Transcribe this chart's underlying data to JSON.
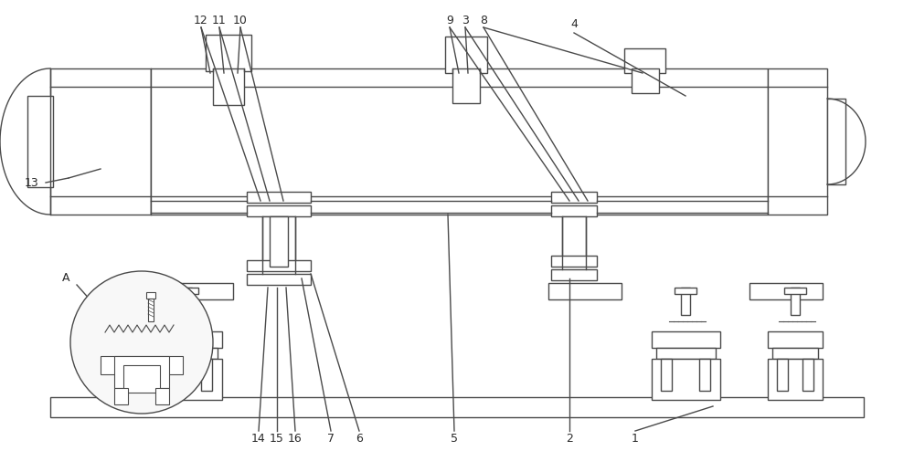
{
  "bg_color": "#ffffff",
  "line_color": "#4a4a4a",
  "lw": 1.0,
  "lw_thin": 0.7,
  "label_color": "#2a2a2a",
  "fig_width": 10.0,
  "fig_height": 5.17,
  "dpi": 100
}
